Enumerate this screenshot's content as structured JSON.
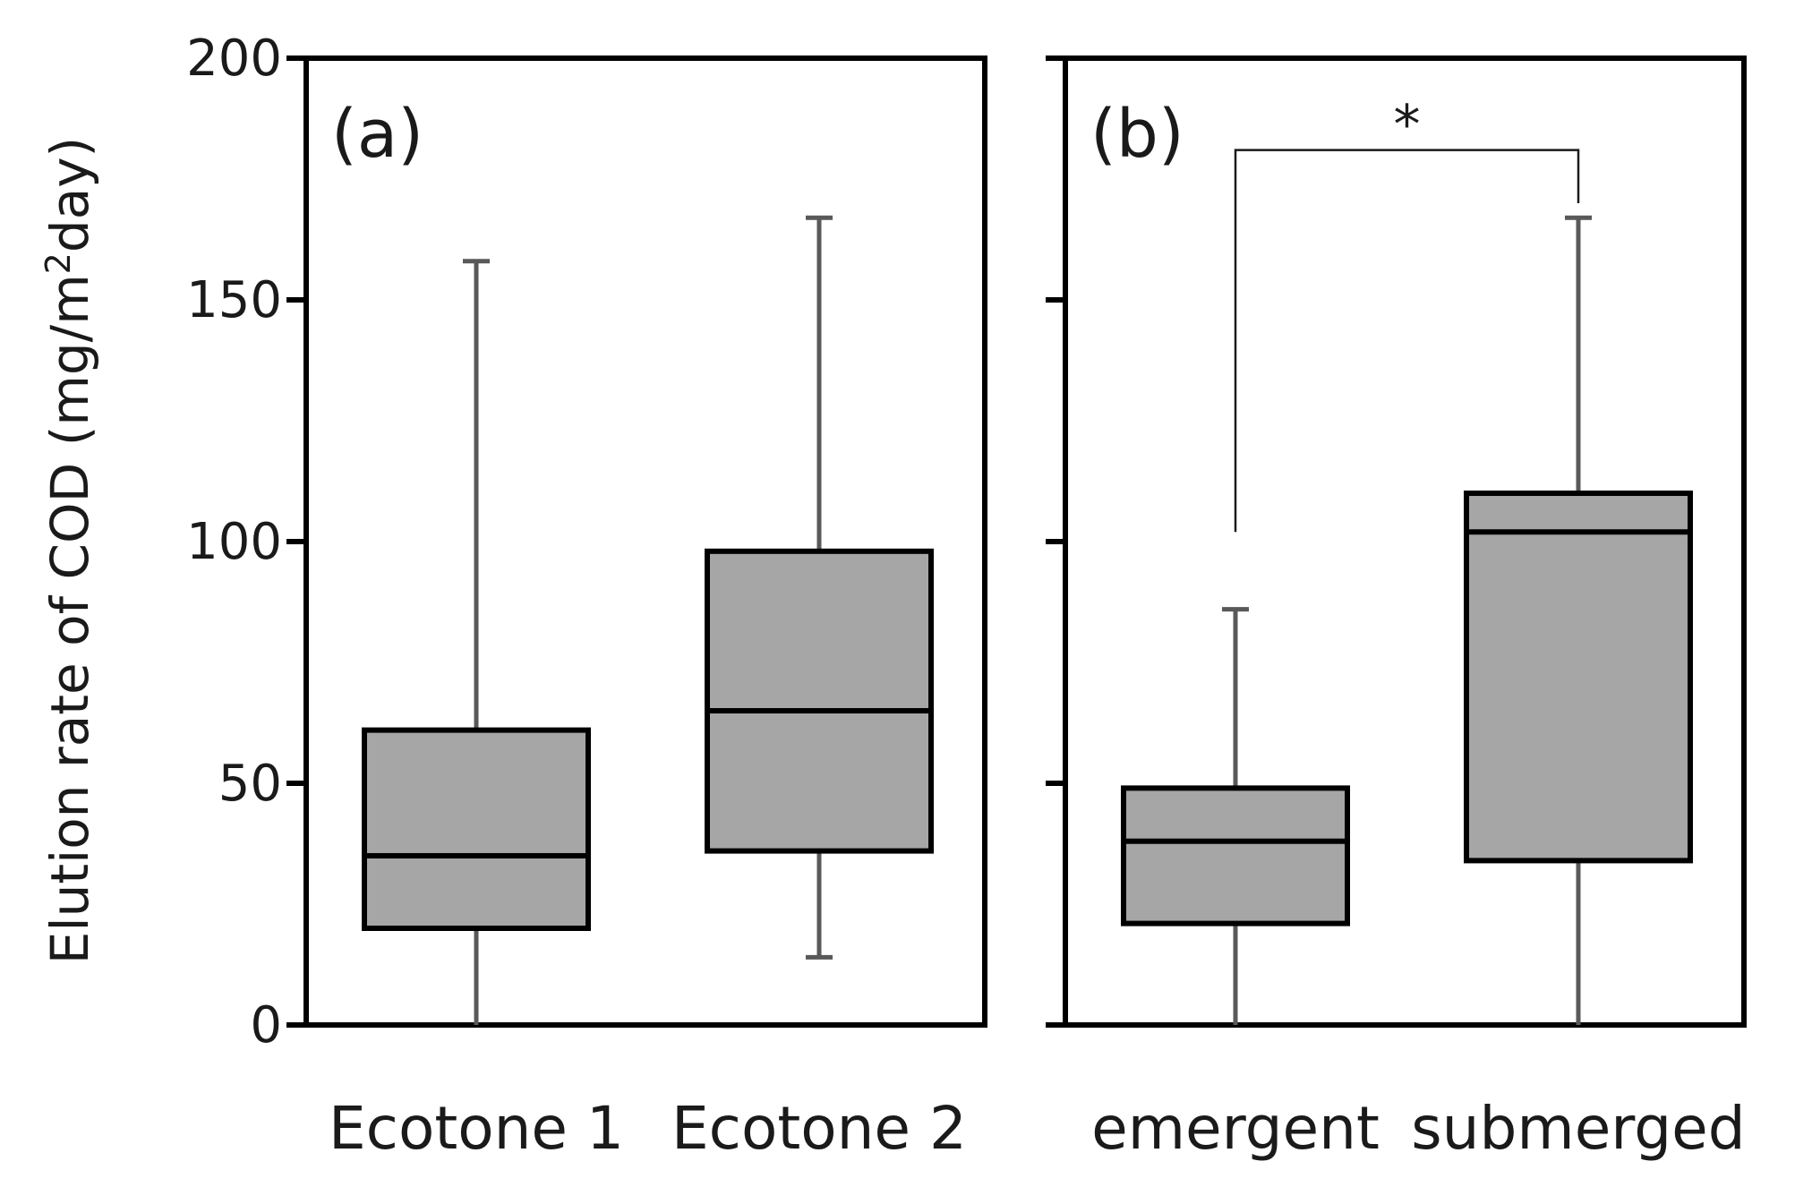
{
  "chart_data": {
    "type": "box",
    "ylabel": "Elution rate of COD (mg/m²day)",
    "ylabel_parts": {
      "before": "Elution rate of COD (mg/m",
      "superscript": "2",
      "after": "day)"
    },
    "ylim": [
      0,
      200
    ],
    "yticks": [
      0,
      50,
      100,
      150,
      200
    ],
    "ytick_labels": [
      "0",
      "50",
      "100",
      "150",
      "200"
    ],
    "grid": false,
    "box_color": "#a6a6a6",
    "whisker_color": "#595959",
    "panels": [
      {
        "label": "(a)",
        "categories": [
          "Ecotone 1",
          "Ecotone 2"
        ],
        "boxes": [
          {
            "min": 0,
            "q1": 20,
            "median": 35,
            "q3": 61,
            "max": 158
          },
          {
            "min": 14,
            "q1": 36,
            "median": 65,
            "q3": 98,
            "max": 167
          }
        ]
      },
      {
        "label": "(b)",
        "categories": [
          "emergent",
          "submerged"
        ],
        "boxes": [
          {
            "min": 0,
            "q1": 21,
            "median": 38,
            "q3": 49,
            "max": 86
          },
          {
            "min": 0,
            "q1": 34,
            "median": 102,
            "q3": 110,
            "max": 167
          }
        ],
        "significance": {
          "label": "*",
          "between": [
            0,
            1
          ],
          "level": 181,
          "left_drop_to": 102,
          "right_drop_to": 170
        }
      }
    ]
  }
}
